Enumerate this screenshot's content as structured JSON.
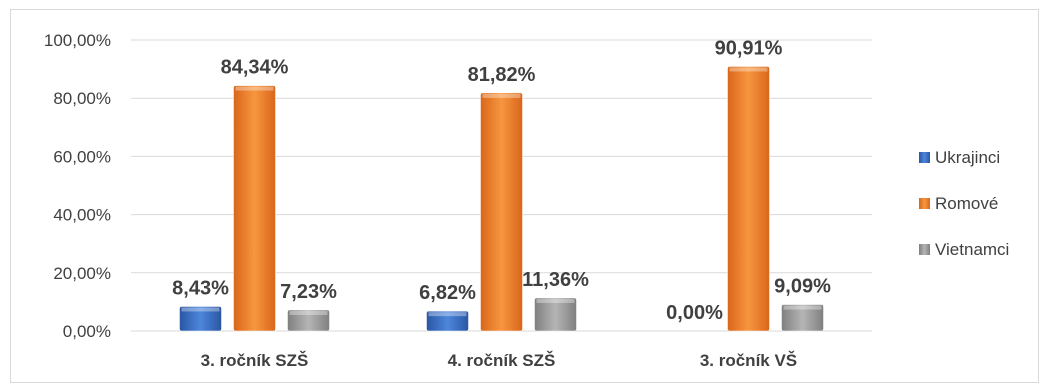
{
  "chart_data": {
    "type": "bar",
    "categories": [
      "3. ročník SZŠ",
      "4. ročník SZŠ",
      "3. ročník VŠ"
    ],
    "series": [
      {
        "name": "Ukrajinci",
        "values": [
          8.43,
          6.82,
          0.0
        ],
        "labels": [
          "8,43%",
          "6,82%",
          "0,00%"
        ],
        "color": "#3a6fc4"
      },
      {
        "name": "Romové",
        "values": [
          84.34,
          81.82,
          90.91
        ],
        "labels": [
          "84,34%",
          "81,82%",
          "90,91%"
        ],
        "color": "#f0812b"
      },
      {
        "name": "Vietnamci",
        "values": [
          7.23,
          11.36,
          9.09
        ],
        "labels": [
          "7,23%",
          "11,36%",
          "9,09%"
        ],
        "color": "#9a9a9a"
      }
    ],
    "yticks": [
      "0,00%",
      "20,00%",
      "40,00%",
      "60,00%",
      "80,00%",
      "100,00%"
    ],
    "ylim": [
      0,
      100
    ],
    "grid": true,
    "legend": "right"
  }
}
